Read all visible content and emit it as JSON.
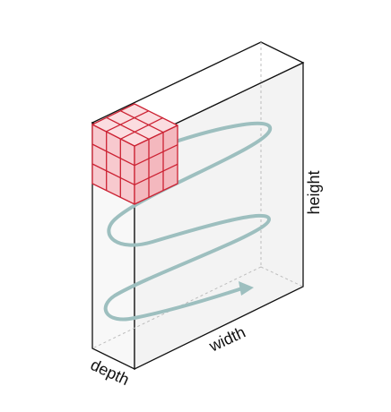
{
  "labels": {
    "width": "width",
    "height": "height",
    "depth": "depth"
  },
  "colors": {
    "outline": "#111111",
    "front_face": "#f3f3f3",
    "side_face": "#f8f8f8",
    "top_face": "#ffffff",
    "hidden_edge": "#bdbdbd",
    "scan_path": "#9dbfbf",
    "kernel_fill_front": "#f4b8be",
    "kernel_fill_side": "#f7c9ce",
    "kernel_fill_top": "#fbdde0",
    "kernel_line": "#cc2233"
  },
  "icons": {
    "volume": "3d-volume-box",
    "kernel": "3x3x3-kernel-cube",
    "path": "spiral-scan-arrow"
  }
}
